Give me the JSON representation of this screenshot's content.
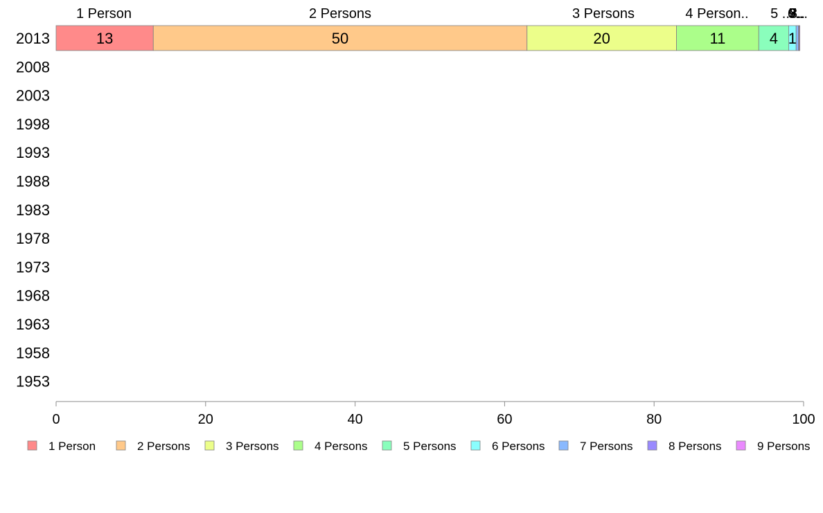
{
  "chart_data": {
    "type": "bar",
    "orientation": "horizontal",
    "stacked": true,
    "categories": [
      "2013",
      "2008",
      "2003",
      "1998",
      "1993",
      "1988",
      "1983",
      "1978",
      "1973",
      "1968",
      "1963",
      "1958",
      "1953"
    ],
    "series": [
      {
        "name": "1 Person",
        "color": "#ff8a8a",
        "values": [
          13,
          null,
          null,
          null,
          null,
          null,
          null,
          null,
          null,
          null,
          null,
          null,
          null
        ]
      },
      {
        "name": "2 Persons",
        "color": "#ffc98a",
        "values": [
          50,
          null,
          null,
          null,
          null,
          null,
          null,
          null,
          null,
          null,
          null,
          null,
          null
        ]
      },
      {
        "name": "3 Persons",
        "color": "#ecfe8a",
        "values": [
          20,
          null,
          null,
          null,
          null,
          null,
          null,
          null,
          null,
          null,
          null,
          null,
          null
        ]
      },
      {
        "name": "4 Persons",
        "color": "#abfe8a",
        "values": [
          11,
          null,
          null,
          null,
          null,
          null,
          null,
          null,
          null,
          null,
          null,
          null,
          null
        ]
      },
      {
        "name": "5 Persons",
        "color": "#8afebc",
        "values": [
          4,
          null,
          null,
          null,
          null,
          null,
          null,
          null,
          null,
          null,
          null,
          null,
          null
        ]
      },
      {
        "name": "6 Persons",
        "color": "#8afefe",
        "values": [
          1,
          null,
          null,
          null,
          null,
          null,
          null,
          null,
          null,
          null,
          null,
          null,
          null
        ]
      },
      {
        "name": "7 Persons",
        "color": "#8ab9fe",
        "values": [
          0.3,
          null,
          null,
          null,
          null,
          null,
          null,
          null,
          null,
          null,
          null,
          null,
          null
        ]
      },
      {
        "name": "8 Persons",
        "color": "#9a8afe",
        "values": [
          0.1,
          null,
          null,
          null,
          null,
          null,
          null,
          null,
          null,
          null,
          null,
          null,
          null
        ]
      },
      {
        "name": "9 Persons",
        "color": "#ea8afe",
        "values": [
          0.1,
          null,
          null,
          null,
          null,
          null,
          null,
          null,
          null,
          null,
          null,
          null,
          null
        ]
      }
    ],
    "segment_top_labels": [
      "1 Person",
      "2 Persons",
      "3 Persons",
      "4 Person..",
      "5 ..",
      "6..",
      "7..",
      "8..",
      "9..."
    ],
    "data_labels": [
      "13",
      "50",
      "20",
      "11",
      "4",
      "1",
      "",
      "",
      ""
    ],
    "xlim": [
      0,
      100
    ],
    "xticks": [
      0,
      20,
      40,
      60,
      80,
      100
    ],
    "xlabel": "",
    "ylabel": "",
    "title": "",
    "grid": false,
    "legend": "bottom"
  }
}
